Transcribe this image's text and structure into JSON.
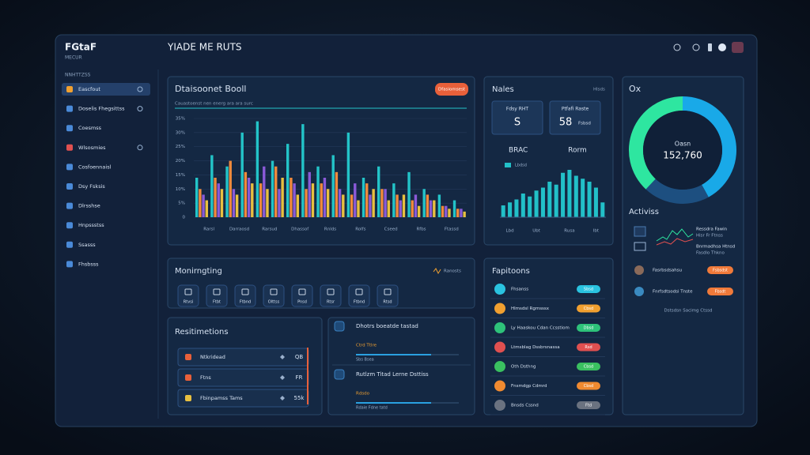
{
  "sidebar": {
    "logo": "FGtaF",
    "logo_sub": "MECUR",
    "section": "NNHTTZSS",
    "items": [
      "Eascfout",
      "Doselis Fhegsittss",
      "Coesmss",
      "Wlsosmies",
      "Cosfoennaisl",
      "Dsy Fsksis",
      "Dlrsshse",
      "Hnpssstss",
      "Ssasss",
      "Fhsbsss"
    ]
  },
  "header": {
    "title": "YIADE ME RUTS"
  },
  "chart_panel": {
    "title": "Dtaisoonet Booll",
    "button": "Dfasiomsest",
    "subtitle": "Cauastoenst nen energ ara ara surc"
  },
  "sales_panel": {
    "title": "Nales",
    "menu": "Hlsds",
    "cards": [
      {
        "label": "Fdsy RHT",
        "value": "S"
      },
      {
        "label": "Ptfafi Raste",
        "value": "58",
        "note": "Fsbsd"
      }
    ],
    "col_left": "BRAC",
    "col_right": "Rorm"
  },
  "donut_panel": {
    "title": "Ox",
    "activity_title": "Activiss",
    "activities": [
      {
        "line1": "Ressdra Fawin",
        "line2": "Hisr Fr Ftnss"
      },
      {
        "line1": "Bnrmadhsa Htnsd",
        "line2": "Fasdlo Thkno"
      }
    ],
    "people": [
      {
        "name": "Fasrbsdsahsu",
        "pill": "Fsbsdst"
      },
      {
        "name": "Fnrfsdtsodsi Tnste",
        "pill": "Fbsdt"
      }
    ],
    "footer": "Dstsdsn Sacimg Ctssd"
  },
  "monitoring": {
    "title": "Monirngting",
    "menu": "Ranosts",
    "tiles": [
      "Rtvsi",
      "Ftbt",
      "Ftbnd",
      "Olttss",
      "Pnsd",
      "Rtsr",
      "Ftbnd",
      "Rtsd"
    ]
  },
  "restrictions": {
    "title": "Resitimetions",
    "rows": [
      {
        "label": "Ntkridead",
        "value": "QB"
      },
      {
        "label": "Ftns",
        "value": "FR"
      },
      {
        "label": "Fbinpamss Tams",
        "value": "55k"
      }
    ]
  },
  "tasks": [
    {
      "title": "Dhotrs boeatde tastad",
      "tag": "Ctrd Ttlre",
      "bar_label": "Sbs Bsea"
    },
    {
      "title": "Rutlzm Titad Lerne Dsttiss",
      "tag": "Rdsdo",
      "bar_label": "Rdaie Fdne tatd"
    }
  ],
  "fapitoons": {
    "title": "Fapitoons",
    "items": [
      {
        "label": "Fhsanss",
        "pill": "Sbsd",
        "color": "#2ac3e0"
      },
      {
        "label": "Hlmsdsl Rgmsssx",
        "pill": "Cbsd",
        "color": "#f0a030"
      },
      {
        "label": "Ly Haaskou Cdan Ccsstiom",
        "pill": "Dbsd",
        "color": "#2ec27a"
      },
      {
        "label": "Ltmsblag Dssbrsnassa",
        "pill": "Rsd",
        "color": "#e05050"
      },
      {
        "label": "Oth Dsthng",
        "pill": "Cbsd",
        "color": "#3ac060"
      },
      {
        "label": "Fnsmdgp Cdmrd",
        "pill": "Cbsd",
        "color": "#f08a30"
      },
      {
        "label": "Bnsds Cssnd",
        "pill": "Ftd",
        "color": "#6a7280"
      }
    ]
  },
  "chart_data": [
    {
      "type": "bar",
      "categories": [
        "Rarsl",
        null,
        "Darraosd",
        null,
        "Rarsud",
        null,
        "Dhassof",
        null,
        "Rnlds",
        null,
        "Rolfs",
        null,
        "Cseed",
        null,
        "Rfbs",
        null,
        "Ftassd",
        null
      ],
      "series": [
        {
          "color": "#23c4c8",
          "values": [
            14,
            22,
            18,
            30,
            34,
            20,
            26,
            33,
            18,
            22,
            30,
            14,
            18,
            12,
            16,
            10,
            8,
            6
          ]
        },
        {
          "color": "#f08a3c",
          "values": [
            10,
            14,
            20,
            16,
            12,
            18,
            14,
            10,
            12,
            16,
            8,
            12,
            10,
            8,
            6,
            8,
            4,
            3
          ]
        },
        {
          "color": "#8a5ad8",
          "values": [
            8,
            12,
            10,
            14,
            18,
            10,
            12,
            16,
            14,
            10,
            12,
            8,
            10,
            6,
            8,
            6,
            4,
            3
          ]
        },
        {
          "color": "#e8c040",
          "values": [
            6,
            10,
            8,
            12,
            10,
            14,
            8,
            12,
            10,
            8,
            6,
            10,
            6,
            8,
            4,
            6,
            3,
            2
          ]
        }
      ],
      "ylim": [
        0,
        35
      ],
      "yticks": [
        0,
        {
          "value": 5,
          "label": "5%"
        },
        {
          "value": 10,
          "label": "10%"
        },
        {
          "value": 15,
          "label": "15%"
        },
        {
          "value": 20,
          "label": "20%"
        },
        {
          "value": 25,
          "label": "25%"
        },
        {
          "value": 30,
          "label": "30%"
        },
        {
          "value": 35,
          "label": "35%"
        }
      ],
      "grid": true
    },
    {
      "type": "bar",
      "categories": [
        null,
        "Lbd",
        null,
        null,
        null,
        "Ubt",
        null,
        null,
        null,
        null,
        "Rusa",
        null,
        null,
        null,
        "Ibt",
        null
      ],
      "series": [
        {
          "name": "Lbdsd",
          "color": "#22c0c8",
          "values": [
            20,
            25,
            30,
            40,
            35,
            45,
            50,
            60,
            55,
            75,
            80,
            70,
            65,
            60,
            50,
            25
          ]
        }
      ],
      "ylim": [
        0,
        100
      ]
    },
    {
      "type": "pie",
      "values": [
        42,
        20,
        38
      ],
      "colors": [
        "#19a9e8",
        "#1d4f80",
        "#2ee6a0"
      ],
      "center_label": "Oasn",
      "center_value": "152,760"
    }
  ]
}
